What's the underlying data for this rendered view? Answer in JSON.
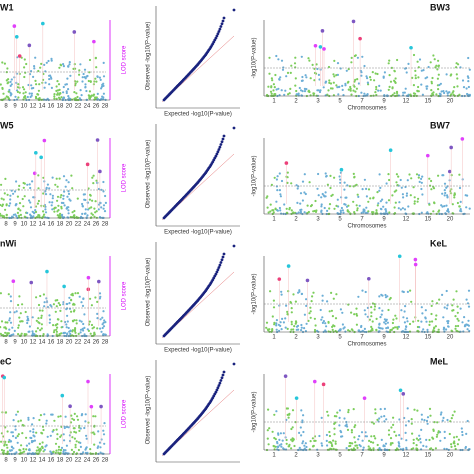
{
  "panels": [
    {
      "left_label": "W1",
      "right_label": "BW3"
    },
    {
      "left_label": "W5",
      "right_label": "BW7"
    },
    {
      "left_label": "nWi",
      "right_label": "KeL"
    },
    {
      "left_label": "eC",
      "right_label": "MeL"
    }
  ],
  "axis_labels": {
    "lod": "LOD score",
    "observed": "Observed -log10(P-value)",
    "expected": "Expected -log10(P-value)",
    "neglog": "-log10(P-value)",
    "chromosomes": "Chromosomes"
  },
  "left_x_ticks": [
    "8",
    "9",
    "10",
    "12",
    "14",
    "16",
    "18",
    "20",
    "22",
    "24",
    "26",
    "28"
  ],
  "right_x_ticks": [
    "1",
    "2",
    "3",
    "5",
    "7",
    "9",
    "12",
    "15",
    "20"
  ]
}
